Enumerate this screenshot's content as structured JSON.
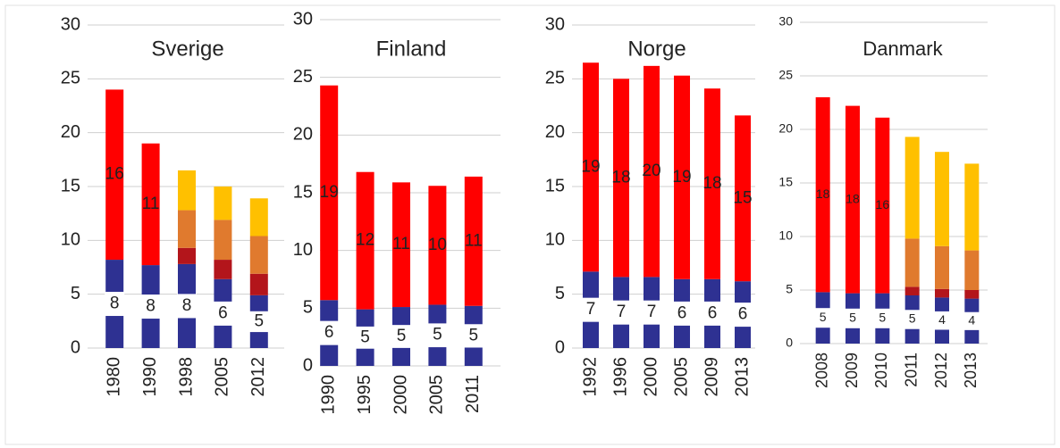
{
  "chart_data": [
    {
      "type": "stacked_bar",
      "title": "Sverige",
      "categories": [
        "1980",
        "1990",
        "1998",
        "2005",
        "2012"
      ],
      "ylim": [
        0,
        30
      ],
      "yticks": [
        0,
        5,
        10,
        15,
        20,
        25,
        30
      ],
      "grid": true,
      "series": [
        {
          "color": "#2e3192",
          "values": [
            8.2,
            7.7,
            7.8,
            6.4,
            4.9
          ],
          "value_labels": [
            "8",
            "8",
            "8",
            "6",
            "5"
          ]
        },
        {
          "color": "#ff0000",
          "values": [
            15.8,
            11.3,
            null,
            null,
            null
          ],
          "value_labels": [
            "16",
            "11",
            null,
            null,
            null
          ]
        },
        {
          "color": "#b3151b",
          "values": [
            null,
            null,
            1.5,
            1.8,
            2.0
          ]
        },
        {
          "color": "#e07a2e",
          "values": [
            null,
            null,
            3.5,
            3.7,
            3.5
          ]
        },
        {
          "color": "#ffc000",
          "values": [
            null,
            null,
            3.7,
            3.1,
            3.5
          ]
        }
      ]
    },
    {
      "type": "stacked_bar",
      "title": "Finland",
      "categories": [
        "1990",
        "1995",
        "2000",
        "2005",
        "2011"
      ],
      "ylim": [
        0,
        30
      ],
      "yticks": [
        0,
        5,
        10,
        15,
        20,
        25,
        30
      ],
      "grid": true,
      "series": [
        {
          "color": "#2e3192",
          "values": [
            5.7,
            4.9,
            5.1,
            5.3,
            5.2
          ],
          "value_labels": [
            "6",
            "5",
            "5",
            "5",
            "5"
          ]
        },
        {
          "color": "#ff0000",
          "values": [
            18.6,
            11.9,
            10.8,
            10.3,
            11.2
          ],
          "value_labels": [
            "19",
            "12",
            "11",
            "10",
            "11"
          ]
        }
      ]
    },
    {
      "type": "stacked_bar",
      "title": "Norge",
      "categories": [
        "1992",
        "1996",
        "2000",
        "2005",
        "2009",
        "2013"
      ],
      "ylim": [
        0,
        30
      ],
      "yticks": [
        0,
        5,
        10,
        15,
        20,
        25,
        30
      ],
      "grid": true,
      "series": [
        {
          "color": "#2e3192",
          "values": [
            7.1,
            6.6,
            6.6,
            6.4,
            6.4,
            6.2
          ],
          "value_labels": [
            "7",
            "7",
            "7",
            "6",
            "6",
            "6"
          ]
        },
        {
          "color": "#ff0000",
          "values": [
            19.4,
            18.4,
            19.6,
            18.9,
            17.7,
            15.4
          ],
          "value_labels": [
            "19",
            "18",
            "20",
            "19",
            "18",
            "15"
          ]
        }
      ]
    },
    {
      "type": "stacked_bar",
      "title": "Danmark",
      "categories": [
        "2008",
        "2009",
        "2010",
        "2011",
        "2012",
        "2013"
      ],
      "ylim": [
        0,
        30
      ],
      "yticks": [
        0,
        5,
        10,
        15,
        20,
        25,
        30
      ],
      "grid": true,
      "series": [
        {
          "color": "#2e3192",
          "values": [
            4.8,
            4.7,
            4.7,
            4.5,
            4.3,
            4.2
          ],
          "value_labels": [
            "5",
            "5",
            "5",
            "5",
            "4",
            "4"
          ]
        },
        {
          "color": "#ff0000",
          "values": [
            18.2,
            17.5,
            16.4,
            null,
            null,
            null
          ],
          "value_labels": [
            "18",
            "18",
            "16",
            null,
            null,
            null
          ]
        },
        {
          "color": "#b3151b",
          "values": [
            null,
            null,
            null,
            0.8,
            0.8,
            0.8
          ]
        },
        {
          "color": "#e07a2e",
          "values": [
            null,
            null,
            null,
            4.5,
            4.0,
            3.7
          ]
        },
        {
          "color": "#ffc000",
          "values": [
            null,
            null,
            null,
            9.5,
            8.8,
            8.1
          ]
        }
      ]
    }
  ]
}
